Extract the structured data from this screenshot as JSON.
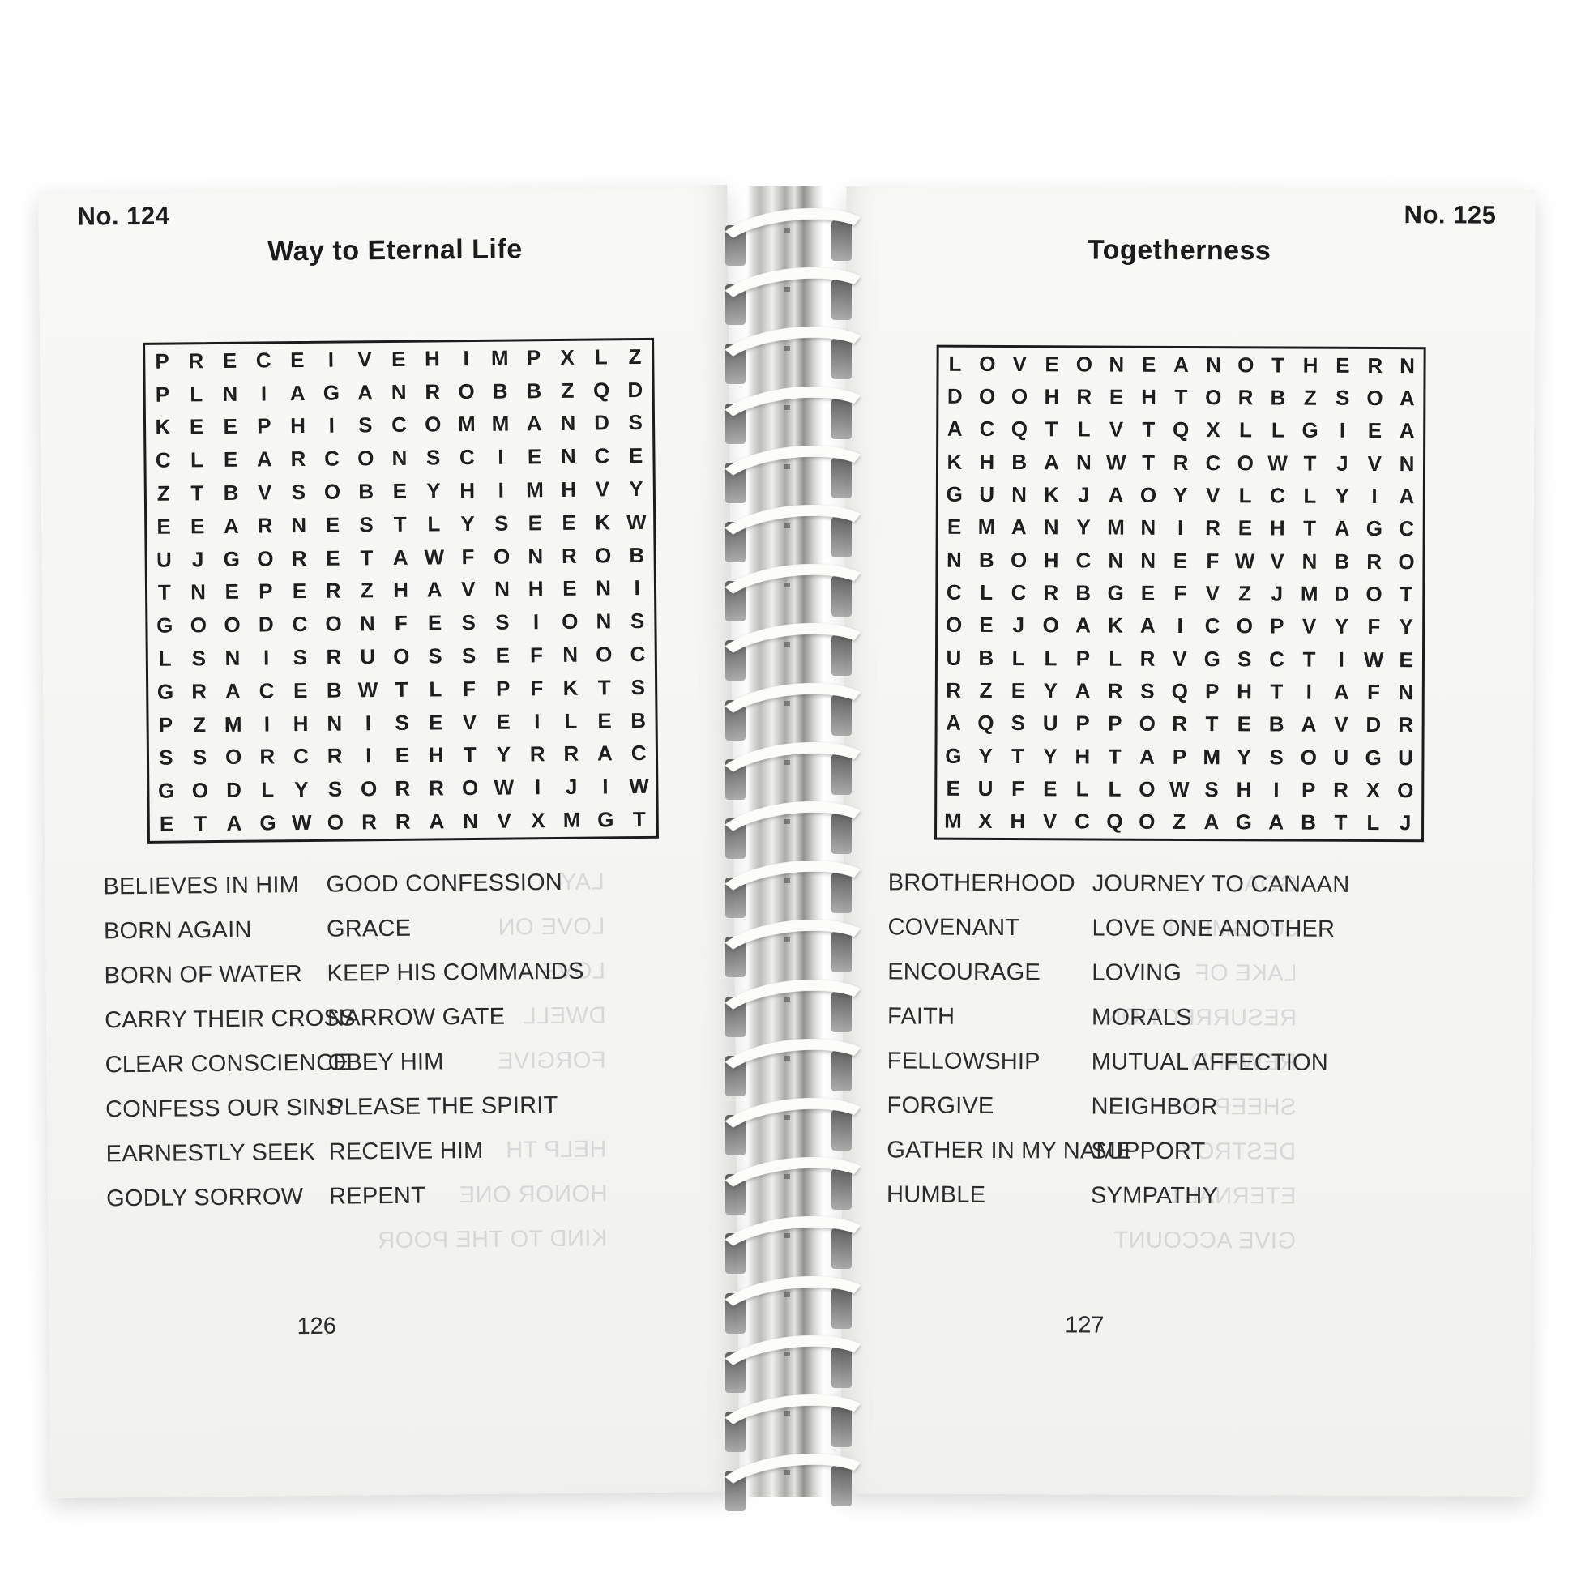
{
  "left_page": {
    "puzzle_number": "No. 124",
    "title": "Way to Eternal Life",
    "grid": [
      "PRECEIVEHIMPXLZ",
      "PLNIAGANROBBZQD",
      "KEEPHISCOMMANDS",
      "CLEARCONSCIENCE",
      "ZTBVSOBEYHIMHVY",
      "EEARNESTLYSEEKW",
      "UJGORETAWFONROB",
      "TNEPERZHAVNHENI",
      "GOODCONFESSIONS",
      "LSNISRUOSSEFNOC",
      "GRACEBWTLFPFKTS",
      "PZMIHNISEVEILEB",
      "SSORCRIEHTYRRAC",
      "GODLYSORROWIJIW",
      "ETAGWORRANVXMGT"
    ],
    "words_col1": [
      "BELIEVES IN HIM",
      "BORN AGAIN",
      "BORN OF WATER",
      "CARRY THEIR CROSS",
      "CLEAR CONSCIENCE",
      "CONFESS OUR SINS",
      "EARNESTLY SEEK",
      "GODLY SORROW"
    ],
    "words_col2": [
      "GOOD CONFESSION",
      "GRACE",
      "KEEP HIS COMMANDS",
      "NARROW GATE",
      "OBEY HIM",
      "PLEASE THE SPIRIT",
      "RECEIVE HIM",
      "REPENT"
    ],
    "page_number": "126",
    "bleedthrough": [
      {
        "text": "LAY",
        "row": 0
      },
      {
        "text": "LOVE ON",
        "row": 1
      },
      {
        "text": "LOVE",
        "row": 2
      },
      {
        "text": "DWELL",
        "row": 3
      },
      {
        "text": "FORGIVE",
        "row": 4
      },
      {
        "text": "HELP TH",
        "row": 6
      },
      {
        "text": "HONOR ONE",
        "row": 7
      },
      {
        "text": "KIND TO THE POOR",
        "row": 8
      }
    ]
  },
  "right_page": {
    "puzzle_number": "No. 125",
    "title": "Togetherness",
    "grid": [
      "LOVEONEANOTHERN",
      "DOOHREHTORBZSOA",
      "ACQTLVTQXLLGIEA",
      "KHBANWTRCOWTJVN",
      "GUNKJAOYVLCLYIA",
      "EMANYMNIREHTAGC",
      "NBOHCNNEFWVNBRO",
      "CLCRBGEFVZJMDOT",
      "OEJOAKAICOPVYFY",
      "UBLLPLRVGSCTIWE",
      "RZEYARSQPHTIAFN",
      "AQSUPPORTEBAVDR",
      "GYTYHTAPMYSOUGU",
      "EUFELLOWSHIPRXO",
      "MXHVCQOZAGABTLJ"
    ],
    "words_col1": [
      "BROTHERHOOD",
      "COVENANT",
      "ENCOURAGE",
      "FAITH",
      "FELLOWSHIP",
      "FORGIVE",
      "GATHER IN MY NAME",
      "HUMBLE"
    ],
    "words_col2": [
      "JOURNEY TO CANAAN",
      "LOVE ONE ANOTHER",
      "LOVING",
      "MORALS",
      "MUTUAL AFFECTION",
      "NEIGHBOR",
      "SUPPORT",
      "SYMPATHY"
    ],
    "page_number": "127",
    "bleedthrough": [
      {
        "text": "GOA",
        "row": 0
      },
      {
        "text": "JUDGMENT",
        "row": 1
      },
      {
        "text": "LAKE OF",
        "row": 2
      },
      {
        "text": "RESURRECTION",
        "row": 3
      },
      {
        "text": "REWARD",
        "row": 4
      },
      {
        "text": "SHEEP IN",
        "row": 5
      },
      {
        "text": "DESTROY",
        "row": 6
      },
      {
        "text": "ETERNAL L",
        "row": 7
      },
      {
        "text": "GIVE ACCOUNT",
        "row": 8
      }
    ]
  },
  "binding": {
    "coil_count": 22,
    "coil_color": "#fcfcfb"
  }
}
